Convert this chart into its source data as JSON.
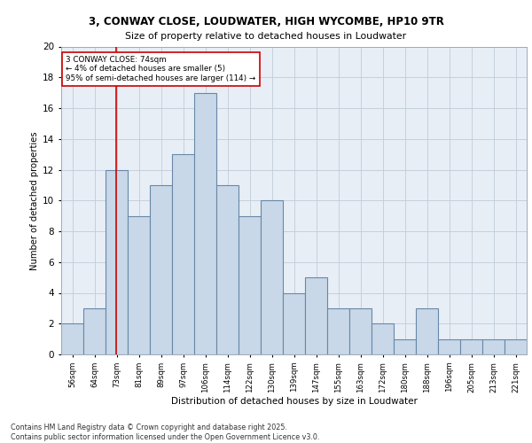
{
  "title_line1": "3, CONWAY CLOSE, LOUDWATER, HIGH WYCOMBE, HP10 9TR",
  "title_line2": "Size of property relative to detached houses in Loudwater",
  "xlabel": "Distribution of detached houses by size in Loudwater",
  "ylabel": "Number of detached properties",
  "bar_labels": [
    "56sqm",
    "64sqm",
    "73sqm",
    "81sqm",
    "89sqm",
    "97sqm",
    "106sqm",
    "114sqm",
    "122sqm",
    "130sqm",
    "139sqm",
    "147sqm",
    "155sqm",
    "163sqm",
    "172sqm",
    "180sqm",
    "188sqm",
    "196sqm",
    "205sqm",
    "213sqm",
    "221sqm"
  ],
  "bar_values": [
    2,
    3,
    12,
    9,
    11,
    13,
    17,
    11,
    9,
    10,
    4,
    5,
    3,
    3,
    2,
    1,
    3,
    1,
    1,
    1,
    1
  ],
  "bar_color": "#c8d8e8",
  "bar_edgecolor": "#6888a8",
  "bar_linewidth": 0.8,
  "vline_x_index": 2,
  "vline_color": "#cc0000",
  "vline_linewidth": 1.2,
  "annotation_text": "3 CONWAY CLOSE: 74sqm\n← 4% of detached houses are smaller (5)\n95% of semi-detached houses are larger (114) →",
  "annotation_box_edgecolor": "#cc0000",
  "annotation_box_facecolor": "#ffffff",
  "ylim": [
    0,
    20
  ],
  "yticks": [
    0,
    2,
    4,
    6,
    8,
    10,
    12,
    14,
    16,
    18,
    20
  ],
  "grid_color": "#c0ccd8",
  "bg_color": "#e8eef6",
  "footer_text": "Contains HM Land Registry data © Crown copyright and database right 2025.\nContains public sector information licensed under the Open Government Licence v3.0."
}
